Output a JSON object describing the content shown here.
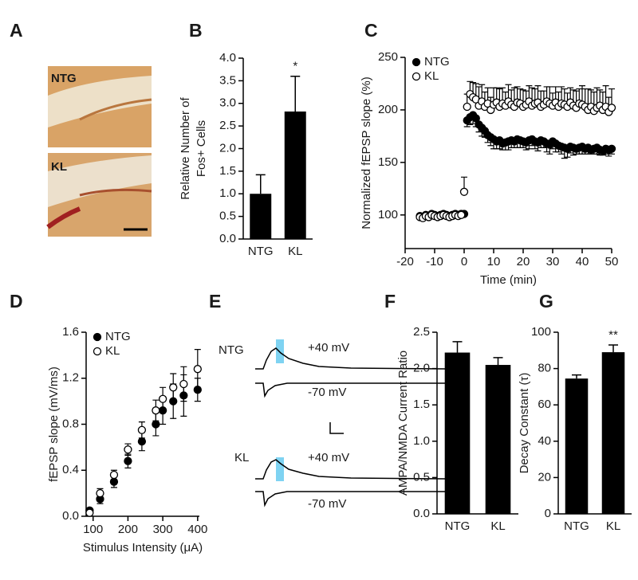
{
  "chart_data": [
    {
      "type": "image",
      "panel": "A",
      "labels": [
        "NTG",
        "KL"
      ]
    },
    {
      "type": "bar",
      "panel": "B",
      "ylabel": [
        "Relative Number of",
        "Fos+ Cells"
      ],
      "categories": [
        "NTG",
        "KL"
      ],
      "values": [
        1.0,
        2.82
      ],
      "errors": [
        0.42,
        0.78
      ],
      "color": "#000000",
      "ylim": [
        0,
        4
      ],
      "yticks": [
        {
          "value": 0,
          "label": "0.0"
        },
        0.5,
        {
          "value": 1,
          "label": "1.0"
        },
        1.5,
        {
          "value": 2,
          "label": "2.0"
        },
        2.5,
        {
          "value": 3,
          "label": "3.0"
        },
        3.5,
        {
          "value": 4,
          "label": "4.0"
        }
      ],
      "annotation": {
        "category": "KL",
        "text": "*"
      }
    },
    {
      "type": "scatter",
      "panel": "C",
      "xlabel": "Time (min)",
      "ylabel": "Normalized fEPSP slope (%)",
      "legend": "upper left",
      "x": [
        -15,
        -14,
        -13,
        -12,
        -11,
        -10,
        -9,
        -8,
        -7,
        -6,
        -5,
        -4,
        -3,
        -2,
        -1,
        0,
        1,
        2,
        3,
        4,
        5,
        6,
        7,
        8,
        9,
        10,
        11,
        12,
        13,
        14,
        15,
        16,
        17,
        18,
        19,
        20,
        21,
        22,
        23,
        24,
        25,
        26,
        27,
        28,
        29,
        30,
        31,
        32,
        33,
        34,
        35,
        36,
        37,
        38,
        39,
        40,
        41,
        42,
        43,
        44,
        45,
        46,
        47,
        48,
        49,
        50
      ],
      "series": [
        {
          "name": "NTG",
          "marker": "filled",
          "error_direction": "down",
          "values": [
            99,
            98,
            100,
            99,
            101,
            100,
            99,
            100,
            101,
            100,
            99,
            100,
            101,
            100,
            101,
            101,
            190,
            193,
            195,
            192,
            186,
            183,
            180,
            176,
            174,
            172,
            170,
            171,
            168,
            169,
            170,
            171,
            170,
            172,
            171,
            170,
            169,
            171,
            172,
            170,
            169,
            171,
            170,
            168,
            167,
            170,
            168,
            166,
            165,
            164,
            163,
            165,
            164,
            163,
            164,
            165,
            163,
            164,
            162,
            163,
            164,
            162,
            161,
            163,
            162,
            163
          ],
          "errors": [
            2,
            2,
            2,
            2,
            2,
            2,
            2,
            2,
            2,
            2,
            2,
            2,
            2,
            2,
            2,
            2,
            6,
            7,
            8,
            8,
            7,
            8,
            6,
            7,
            8,
            9,
            7,
            8,
            6,
            7,
            8,
            7,
            6,
            8,
            7,
            6,
            7,
            8,
            6,
            7,
            8,
            7,
            6,
            8,
            9,
            7,
            8,
            6,
            7,
            10,
            8,
            6,
            7,
            5,
            6,
            7,
            5,
            6,
            4,
            5,
            6,
            5,
            4,
            5,
            6,
            5
          ]
        },
        {
          "name": "KL",
          "marker": "open",
          "error_direction": "up",
          "values": [
            98,
            97,
            99,
            98,
            100,
            99,
            98,
            99,
            100,
            99,
            98,
            99,
            100,
            99,
            100,
            122,
            203,
            215,
            212,
            210,
            204,
            208,
            203,
            206,
            200,
            205,
            207,
            203,
            206,
            204,
            208,
            205,
            203,
            207,
            206,
            203,
            205,
            208,
            204,
            206,
            207,
            203,
            205,
            208,
            206,
            204,
            207,
            203,
            206,
            205,
            203,
            207,
            204,
            202,
            206,
            205,
            203,
            200,
            203,
            199,
            202,
            204,
            200,
            203,
            198,
            202
          ],
          "errors": [
            2,
            2,
            2,
            2,
            2,
            2,
            2,
            2,
            2,
            2,
            2,
            2,
            2,
            2,
            2,
            14,
            12,
            12,
            14,
            15,
            18,
            16,
            14,
            15,
            12,
            16,
            14,
            17,
            15,
            13,
            16,
            14,
            18,
            15,
            14,
            16,
            13,
            15,
            17,
            14,
            16,
            15,
            13,
            14,
            16,
            12,
            15,
            14,
            16,
            15,
            13,
            14,
            15,
            16,
            14,
            18,
            17,
            20,
            16,
            18,
            19,
            15,
            17,
            20,
            14,
            18
          ]
        }
      ],
      "xlim": [
        -20,
        50
      ],
      "xticks": [
        -20,
        -10,
        0,
        10,
        20,
        30,
        40,
        50
      ],
      "ylim": [
        68,
        250
      ],
      "yticks": [
        100,
        150,
        200,
        250
      ]
    },
    {
      "type": "scatter",
      "panel": "D",
      "xlabel": "Stimulus Intensity (μA)",
      "ylabel": "fEPSP slope (mV/ms)",
      "legend": "upper left",
      "x": [
        90,
        120,
        160,
        200,
        240,
        280,
        300,
        330,
        360,
        400
      ],
      "series": [
        {
          "name": "NTG",
          "marker": "filled",
          "error_direction": "both",
          "values": [
            0.05,
            0.15,
            0.3,
            0.48,
            0.65,
            0.8,
            0.92,
            1.0,
            1.05,
            1.1
          ],
          "errors": [
            0.02,
            0.04,
            0.05,
            0.06,
            0.08,
            0.1,
            0.12,
            0.15,
            0.18,
            0.1
          ]
        },
        {
          "name": "KL",
          "marker": "open",
          "error_direction": "both",
          "values": [
            0.03,
            0.2,
            0.36,
            0.58,
            0.75,
            0.92,
            1.02,
            1.12,
            1.15,
            1.28
          ],
          "errors": [
            0.02,
            0.04,
            0.04,
            0.05,
            0.07,
            0.09,
            0.1,
            0.12,
            0.15,
            0.17
          ]
        }
      ],
      "xlim": [
        80,
        405
      ],
      "xticks": [
        100,
        200,
        300,
        400
      ],
      "ylim": [
        0,
        1.6
      ],
      "yticks": [
        {
          "value": 0,
          "label": "0.0"
        },
        0.4,
        0.8,
        1.2,
        1.6
      ]
    },
    {
      "type": "traces",
      "panel": "E",
      "traces": [
        {
          "name": "NTG",
          "upper": "+40 mV",
          "lower": "-70 mV"
        },
        {
          "name": "KL",
          "upper": "+40 mV",
          "lower": "-70 mV"
        }
      ]
    },
    {
      "type": "bar",
      "panel": "F",
      "ylabel": "AMPA/NMDA Current Ratio",
      "categories": [
        "NTG",
        "KL"
      ],
      "values": [
        2.22,
        2.05
      ],
      "errors": [
        0.15,
        0.1
      ],
      "color": "#000000",
      "ylim": [
        0,
        2.5
      ],
      "yticks": [
        {
          "value": 0,
          "label": "0.0"
        },
        0.5,
        {
          "value": 1,
          "label": "1.0"
        },
        1.5,
        {
          "value": 2,
          "label": "2.0"
        },
        2.5
      ]
    },
    {
      "type": "bar",
      "panel": "G",
      "ylabel": "Decay Constant (τ)",
      "categories": [
        "NTG",
        "KL"
      ],
      "values": [
        74.5,
        89
      ],
      "errors": [
        2,
        4
      ],
      "color": "#000000",
      "ylim": [
        0,
        100
      ],
      "yticks": [
        0,
        20,
        40,
        60,
        80,
        100
      ],
      "annotation": {
        "category": "KL",
        "text": "**"
      }
    }
  ]
}
